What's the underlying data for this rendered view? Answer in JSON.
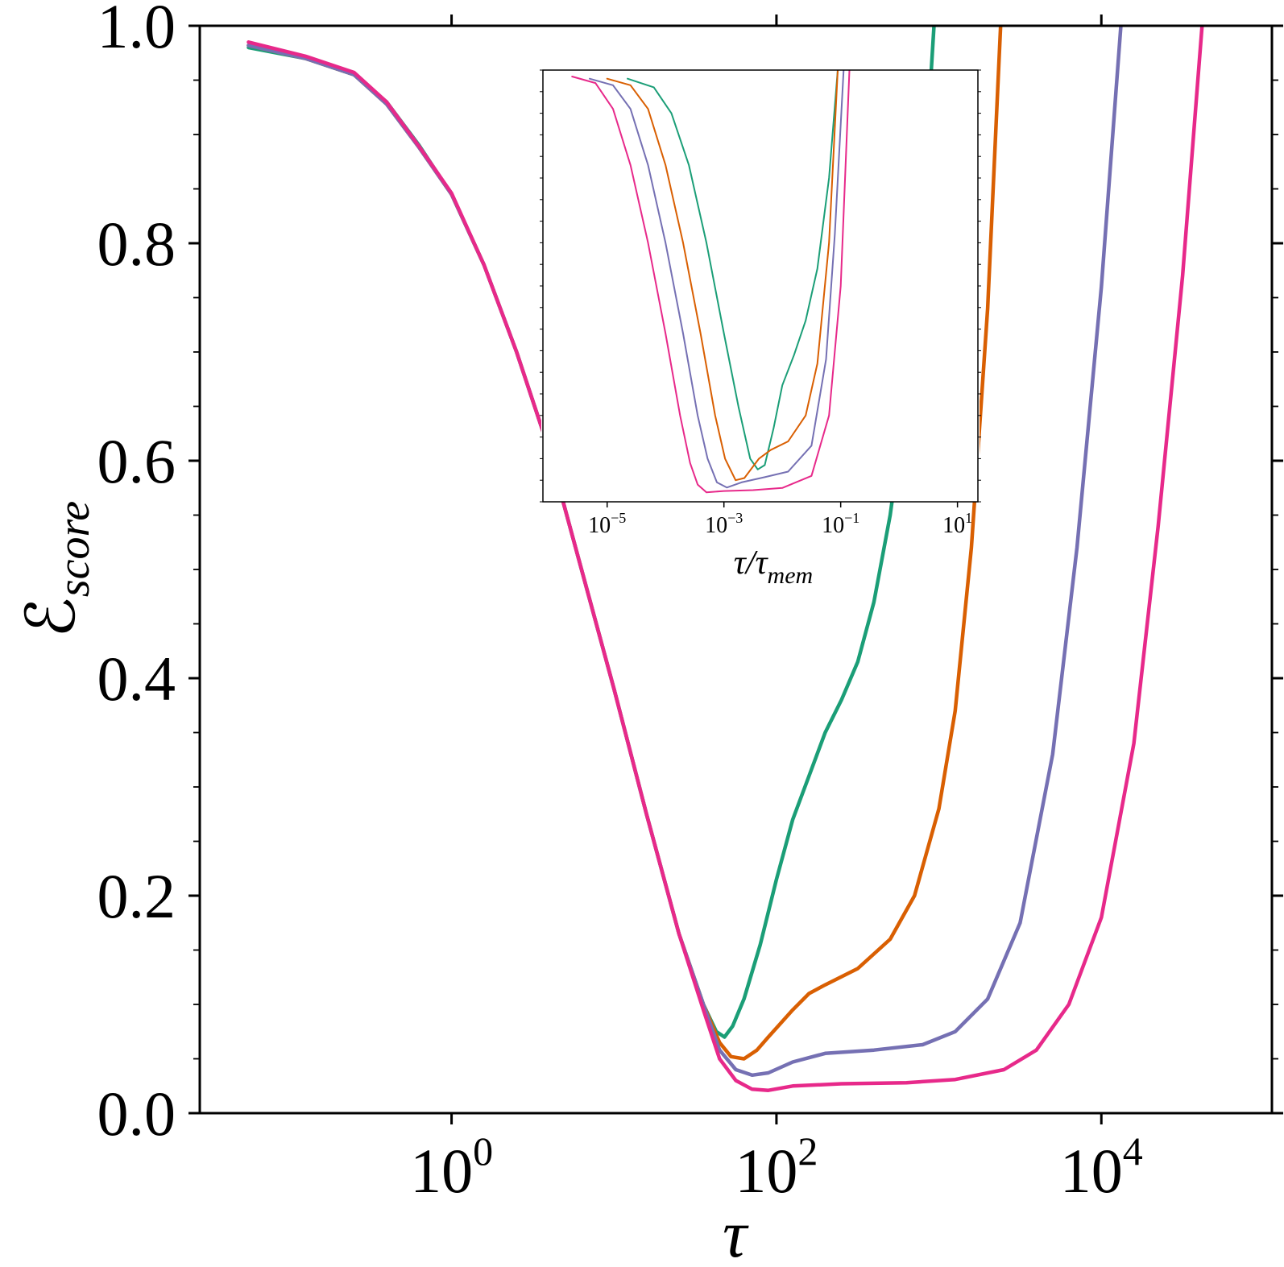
{
  "chart_data": [
    {
      "type": "line",
      "panel": "main",
      "title": "",
      "xlabel": "τ",
      "ylabel": "ℰ_score",
      "ylabel_main": "ℰ",
      "ylabel_sub": "score",
      "xscale": "log",
      "xlim_log10": [
        -1.55,
        5.05
      ],
      "ylim": [
        0.0,
        1.0
      ],
      "x_ticks": [
        {
          "base": "10",
          "exp": "0",
          "log10": 0
        },
        {
          "base": "10",
          "exp": "2",
          "log10": 2
        },
        {
          "base": "10",
          "exp": "4",
          "log10": 4
        }
      ],
      "y_ticks": [
        "0.0",
        "0.2",
        "0.4",
        "0.6",
        "0.8",
        "1.0"
      ],
      "y_tick_values": [
        0.0,
        0.2,
        0.4,
        0.6,
        0.8,
        1.0
      ],
      "grid": false,
      "series": [
        {
          "name": "series-1-green",
          "color": "#1b9e77",
          "points_log10x": [
            [
              -1.25,
              0.98
            ],
            [
              -0.9,
              0.97
            ],
            [
              -0.6,
              0.955
            ],
            [
              -0.4,
              0.93
            ],
            [
              -0.2,
              0.89
            ],
            [
              0.0,
              0.845
            ],
            [
              0.2,
              0.78
            ],
            [
              0.4,
              0.7
            ],
            [
              0.6,
              0.61
            ],
            [
              0.8,
              0.5
            ],
            [
              1.0,
              0.39
            ],
            [
              1.2,
              0.275
            ],
            [
              1.4,
              0.165
            ],
            [
              1.55,
              0.1
            ],
            [
              1.63,
              0.075
            ],
            [
              1.68,
              0.07
            ],
            [
              1.73,
              0.08
            ],
            [
              1.8,
              0.105
            ],
            [
              1.9,
              0.155
            ],
            [
              2.0,
              0.215
            ],
            [
              2.1,
              0.27
            ],
            [
              2.2,
              0.31
            ],
            [
              2.3,
              0.35
            ],
            [
              2.4,
              0.38
            ],
            [
              2.5,
              0.415
            ],
            [
              2.6,
              0.47
            ],
            [
              2.7,
              0.55
            ],
            [
              2.8,
              0.66
            ],
            [
              2.9,
              0.83
            ],
            [
              2.97,
              1.0
            ]
          ]
        },
        {
          "name": "series-2-orange",
          "color": "#d95f02",
          "points_log10x": [
            [
              -1.25,
              0.982
            ],
            [
              -0.9,
              0.97
            ],
            [
              -0.6,
              0.955
            ],
            [
              -0.4,
              0.928
            ],
            [
              -0.2,
              0.888
            ],
            [
              0.0,
              0.845
            ],
            [
              0.2,
              0.78
            ],
            [
              0.4,
              0.7
            ],
            [
              0.6,
              0.61
            ],
            [
              0.8,
              0.5
            ],
            [
              1.0,
              0.39
            ],
            [
              1.2,
              0.275
            ],
            [
              1.4,
              0.165
            ],
            [
              1.55,
              0.1
            ],
            [
              1.65,
              0.065
            ],
            [
              1.72,
              0.052
            ],
            [
              1.8,
              0.05
            ],
            [
              1.88,
              0.058
            ],
            [
              1.95,
              0.07
            ],
            [
              2.1,
              0.095
            ],
            [
              2.2,
              0.11
            ],
            [
              2.3,
              0.118
            ],
            [
              2.5,
              0.133
            ],
            [
              2.7,
              0.16
            ],
            [
              2.85,
              0.2
            ],
            [
              3.0,
              0.28
            ],
            [
              3.1,
              0.37
            ],
            [
              3.2,
              0.52
            ],
            [
              3.3,
              0.74
            ],
            [
              3.38,
              1.0
            ]
          ]
        },
        {
          "name": "series-3-purple",
          "color": "#7570b3",
          "points_log10x": [
            [
              -1.25,
              0.982
            ],
            [
              -0.9,
              0.97
            ],
            [
              -0.6,
              0.955
            ],
            [
              -0.4,
              0.928
            ],
            [
              -0.2,
              0.888
            ],
            [
              0.0,
              0.845
            ],
            [
              0.2,
              0.78
            ],
            [
              0.4,
              0.7
            ],
            [
              0.6,
              0.61
            ],
            [
              0.8,
              0.5
            ],
            [
              1.0,
              0.39
            ],
            [
              1.2,
              0.275
            ],
            [
              1.4,
              0.165
            ],
            [
              1.55,
              0.1
            ],
            [
              1.65,
              0.058
            ],
            [
              1.75,
              0.04
            ],
            [
              1.85,
              0.035
            ],
            [
              1.95,
              0.037
            ],
            [
              2.1,
              0.047
            ],
            [
              2.3,
              0.055
            ],
            [
              2.6,
              0.058
            ],
            [
              2.9,
              0.063
            ],
            [
              3.1,
              0.075
            ],
            [
              3.3,
              0.105
            ],
            [
              3.5,
              0.175
            ],
            [
              3.7,
              0.33
            ],
            [
              3.85,
              0.52
            ],
            [
              4.0,
              0.76
            ],
            [
              4.12,
              1.0
            ]
          ]
        },
        {
          "name": "series-4-magenta",
          "color": "#e7298a",
          "points_log10x": [
            [
              -1.25,
              0.985
            ],
            [
              -0.9,
              0.972
            ],
            [
              -0.6,
              0.957
            ],
            [
              -0.4,
              0.93
            ],
            [
              -0.2,
              0.889
            ],
            [
              0.0,
              0.846
            ],
            [
              0.2,
              0.78
            ],
            [
              0.4,
              0.7
            ],
            [
              0.6,
              0.61
            ],
            [
              0.8,
              0.5
            ],
            [
              1.0,
              0.39
            ],
            [
              1.2,
              0.275
            ],
            [
              1.4,
              0.165
            ],
            [
              1.55,
              0.095
            ],
            [
              1.65,
              0.05
            ],
            [
              1.75,
              0.03
            ],
            [
              1.85,
              0.022
            ],
            [
              1.95,
              0.021
            ],
            [
              2.1,
              0.025
            ],
            [
              2.4,
              0.027
            ],
            [
              2.8,
              0.028
            ],
            [
              3.1,
              0.031
            ],
            [
              3.4,
              0.04
            ],
            [
              3.6,
              0.058
            ],
            [
              3.8,
              0.1
            ],
            [
              4.0,
              0.18
            ],
            [
              4.2,
              0.34
            ],
            [
              4.35,
              0.54
            ],
            [
              4.5,
              0.77
            ],
            [
              4.62,
              1.0
            ]
          ]
        }
      ]
    },
    {
      "type": "line",
      "panel": "inset",
      "xlabel": "τ/τ_mem",
      "xlabel_main": "τ/τ",
      "xlabel_sub": "mem",
      "xscale": "log",
      "xlim_log10": [
        -6.1,
        1.35
      ],
      "ylim": [
        0.0,
        1.0
      ],
      "x_ticks": [
        {
          "base": "10",
          "exp": "−5",
          "log10": -5
        },
        {
          "base": "10",
          "exp": "−3",
          "log10": -3
        },
        {
          "base": "10",
          "exp": "−1",
          "log10": -1
        },
        {
          "base": "10",
          "exp": "1",
          "log10": 1
        }
      ],
      "series": [
        {
          "name": "inset-series-1-green",
          "color": "#1b9e77",
          "points_log10x": [
            [
              -4.65,
              0.98
            ],
            [
              -4.2,
              0.96
            ],
            [
              -3.9,
              0.9
            ],
            [
              -3.6,
              0.78
            ],
            [
              -3.3,
              0.6
            ],
            [
              -3.0,
              0.39
            ],
            [
              -2.75,
              0.22
            ],
            [
              -2.55,
              0.1
            ],
            [
              -2.42,
              0.075
            ],
            [
              -2.3,
              0.085
            ],
            [
              -2.15,
              0.17
            ],
            [
              -2.0,
              0.27
            ],
            [
              -1.8,
              0.34
            ],
            [
              -1.6,
              0.42
            ],
            [
              -1.4,
              0.54
            ],
            [
              -1.2,
              0.75
            ],
            [
              -1.05,
              1.0
            ]
          ]
        },
        {
          "name": "inset-series-2-orange",
          "color": "#d95f02",
          "points_log10x": [
            [
              -5.0,
              0.98
            ],
            [
              -4.6,
              0.965
            ],
            [
              -4.3,
              0.91
            ],
            [
              -4.0,
              0.78
            ],
            [
              -3.7,
              0.6
            ],
            [
              -3.4,
              0.39
            ],
            [
              -3.15,
              0.2
            ],
            [
              -2.98,
              0.1
            ],
            [
              -2.8,
              0.05
            ],
            [
              -2.65,
              0.055
            ],
            [
              -2.4,
              0.1
            ],
            [
              -2.2,
              0.12
            ],
            [
              -1.9,
              0.14
            ],
            [
              -1.6,
              0.2
            ],
            [
              -1.4,
              0.32
            ],
            [
              -1.2,
              0.6
            ],
            [
              -1.05,
              1.0
            ]
          ]
        },
        {
          "name": "inset-series-3-purple",
          "color": "#7570b3",
          "points_log10x": [
            [
              -5.3,
              0.98
            ],
            [
              -4.9,
              0.965
            ],
            [
              -4.6,
              0.91
            ],
            [
              -4.3,
              0.78
            ],
            [
              -4.0,
              0.6
            ],
            [
              -3.7,
              0.39
            ],
            [
              -3.45,
              0.2
            ],
            [
              -3.28,
              0.1
            ],
            [
              -3.12,
              0.045
            ],
            [
              -2.95,
              0.033
            ],
            [
              -2.7,
              0.045
            ],
            [
              -2.3,
              0.057
            ],
            [
              -1.9,
              0.07
            ],
            [
              -1.5,
              0.13
            ],
            [
              -1.25,
              0.33
            ],
            [
              -1.1,
              0.62
            ],
            [
              -0.95,
              1.0
            ]
          ]
        },
        {
          "name": "inset-series-4-magenta",
          "color": "#e7298a",
          "points_log10x": [
            [
              -5.6,
              0.985
            ],
            [
              -5.2,
              0.97
            ],
            [
              -4.9,
              0.91
            ],
            [
              -4.6,
              0.78
            ],
            [
              -4.3,
              0.6
            ],
            [
              -4.0,
              0.39
            ],
            [
              -3.75,
              0.2
            ],
            [
              -3.58,
              0.09
            ],
            [
              -3.45,
              0.04
            ],
            [
              -3.3,
              0.022
            ],
            [
              -3.0,
              0.025
            ],
            [
              -2.5,
              0.027
            ],
            [
              -2.0,
              0.032
            ],
            [
              -1.5,
              0.06
            ],
            [
              -1.2,
              0.2
            ],
            [
              -1.0,
              0.5
            ],
            [
              -0.85,
              1.0
            ]
          ]
        }
      ]
    }
  ]
}
